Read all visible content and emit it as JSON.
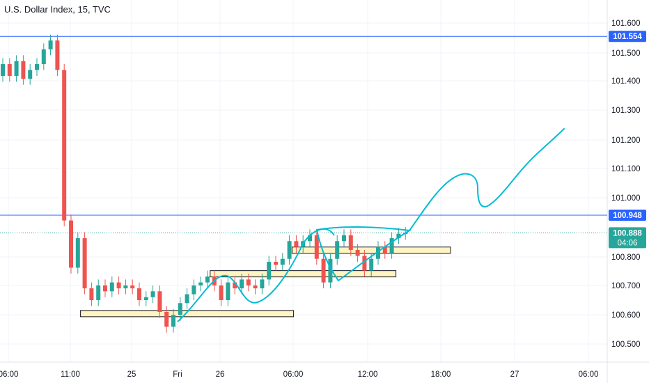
{
  "title": "U.S. Dollar Index, 15, TVC",
  "colors": {
    "up": "#26a69a",
    "down": "#ef5350",
    "level_line": "#2962ff",
    "current_line": "#26a69a",
    "drawing": "#00bcd4",
    "zone_fill": "#fff4c2",
    "zone_stroke": "#131722",
    "grid": "#f0f3fa"
  },
  "chart_data": {
    "type": "candlestick",
    "title": "U.S. Dollar Index, 15, TVC",
    "xlabel": "",
    "ylabel": "",
    "ylim": [
      100.45,
      101.63
    ],
    "grid": true,
    "y_ticks": [
      "101.600",
      "101.500",
      "101.400",
      "101.300",
      "101.200",
      "101.100",
      "101.000",
      "100.800",
      "100.700",
      "100.600",
      "100.500"
    ],
    "x_ticks": [
      "06:00",
      "11:00",
      "25",
      "Fri",
      "26",
      "06:00",
      "12:00",
      "18:00",
      "27",
      "06:00"
    ],
    "levels": [
      {
        "label": "101.554",
        "value": 101.554,
        "style": "solid"
      },
      {
        "label": "100.948",
        "value": 100.948,
        "style": "solid"
      }
    ],
    "current": {
      "label": "100.888",
      "value": 100.888,
      "countdown": "04:06"
    },
    "zones": [
      {
        "i0": 12,
        "i1": 42,
        "low": 100.61,
        "high": 100.625
      },
      {
        "i0": 31,
        "i1": 57,
        "low": 100.745,
        "high": 100.76
      },
      {
        "i0": 43,
        "i1": 65,
        "low": 100.825,
        "high": 100.84
      }
    ],
    "candles_open_close": [
      [
        101.42,
        101.46
      ],
      [
        101.46,
        101.42
      ],
      [
        101.42,
        101.47
      ],
      [
        101.47,
        101.41
      ],
      [
        101.41,
        101.44
      ],
      [
        101.44,
        101.46
      ],
      [
        101.46,
        101.51
      ],
      [
        101.51,
        101.54
      ],
      [
        101.54,
        101.44
      ],
      [
        101.44,
        100.93
      ],
      [
        100.93,
        100.77
      ],
      [
        100.77,
        100.87
      ],
      [
        100.87,
        100.7
      ],
      [
        100.7,
        100.66
      ],
      [
        100.66,
        100.71
      ],
      [
        100.71,
        100.69
      ],
      [
        100.69,
        100.72
      ],
      [
        100.72,
        100.7
      ],
      [
        100.7,
        100.71
      ],
      [
        100.71,
        100.7
      ],
      [
        100.7,
        100.66
      ],
      [
        100.66,
        100.67
      ],
      [
        100.67,
        100.69
      ],
      [
        100.69,
        100.62
      ],
      [
        100.62,
        100.57
      ],
      [
        100.57,
        100.61
      ],
      [
        100.61,
        100.65
      ],
      [
        100.65,
        100.68
      ],
      [
        100.68,
        100.71
      ],
      [
        100.71,
        100.72
      ],
      [
        100.72,
        100.74
      ],
      [
        100.74,
        100.71
      ],
      [
        100.71,
        100.66
      ],
      [
        100.66,
        100.72
      ],
      [
        100.72,
        100.7
      ],
      [
        100.7,
        100.73
      ],
      [
        100.73,
        100.71
      ],
      [
        100.71,
        100.7
      ],
      [
        100.7,
        100.73
      ],
      [
        100.73,
        100.79
      ],
      [
        100.79,
        100.78
      ],
      [
        100.78,
        100.8
      ],
      [
        100.8,
        100.86
      ],
      [
        100.86,
        100.84
      ],
      [
        100.84,
        100.86
      ],
      [
        100.86,
        100.88
      ],
      [
        100.88,
        100.8
      ],
      [
        100.8,
        100.72
      ],
      [
        100.72,
        100.8
      ],
      [
        100.8,
        100.86
      ],
      [
        100.86,
        100.88
      ],
      [
        100.88,
        100.83
      ],
      [
        100.83,
        100.81
      ],
      [
        100.81,
        100.76
      ],
      [
        100.76,
        100.8
      ],
      [
        100.8,
        100.84
      ],
      [
        100.84,
        100.82
      ],
      [
        100.82,
        100.87
      ],
      [
        100.87,
        100.885
      ],
      [
        100.885,
        100.888
      ]
    ]
  }
}
